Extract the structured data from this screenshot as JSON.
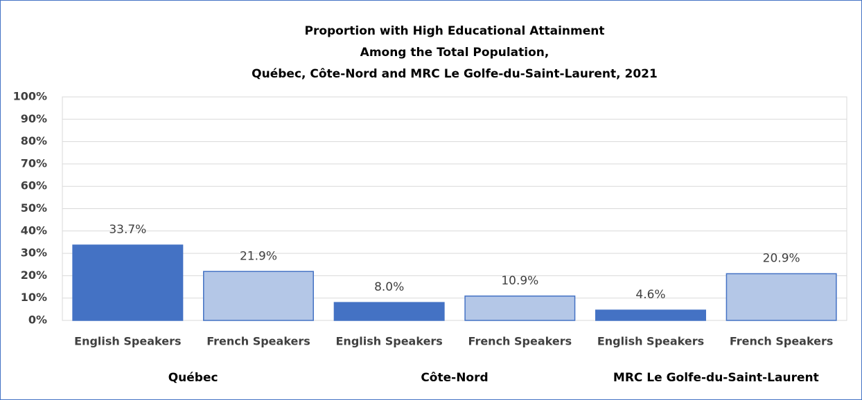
{
  "chart_data": {
    "type": "bar",
    "title": [
      "Proportion with High Educational Attainment",
      "Among the Total Population,",
      "Québec, Côte-Nord and MRC Le Golfe-du-Saint-Laurent, 2021"
    ],
    "categories": [
      "English Speakers",
      "French Speakers",
      "English Speakers",
      "French Speakers",
      "English Speakers",
      "French Speakers"
    ],
    "groups": [
      "Québec",
      "Côte-Nord",
      "MRC Le Golfe-du-Saint-Laurent"
    ],
    "values": [
      33.7,
      21.9,
      8.0,
      10.9,
      4.6,
      20.9
    ],
    "value_labels": [
      "33.7%",
      "21.9%",
      "8.0%",
      "10.9%",
      "4.6%",
      "20.9%"
    ],
    "colors": [
      "#4472c4",
      "#b4c7e7",
      "#4472c4",
      "#b4c7e7",
      "#4472c4",
      "#b4c7e7"
    ],
    "ylim": [
      0,
      100
    ],
    "yticks": [
      {
        "value": 0,
        "label": "0%"
      },
      {
        "value": 10,
        "label": "10%"
      },
      {
        "value": 20,
        "label": "20%"
      },
      {
        "value": 30,
        "label": "30%"
      },
      {
        "value": 40,
        "label": "40%"
      },
      {
        "value": 50,
        "label": "50%"
      },
      {
        "value": 60,
        "label": "60%"
      },
      {
        "value": 70,
        "label": "70%"
      },
      {
        "value": 80,
        "label": "80%"
      },
      {
        "value": 90,
        "label": "90%"
      },
      {
        "value": 100,
        "label": "100%"
      }
    ],
    "grid": true
  }
}
